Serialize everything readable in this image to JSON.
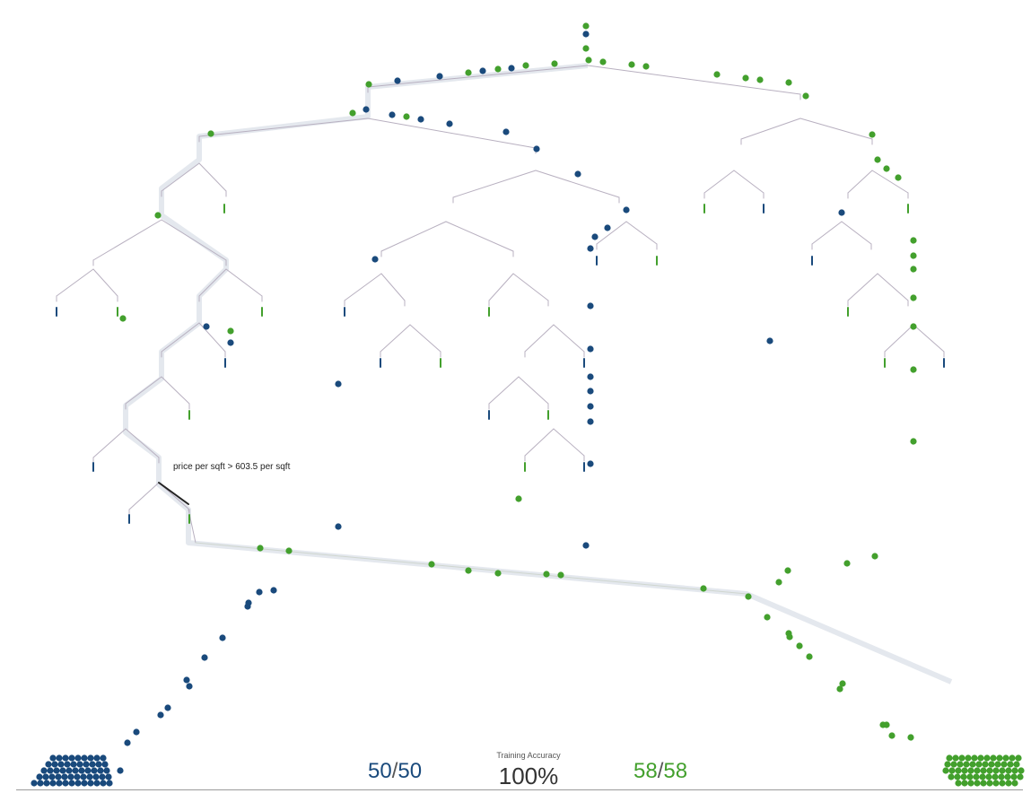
{
  "tooltip": {
    "split_label": "price per sqft > 603.5 per sqft"
  },
  "accuracy": {
    "label": "Training Accuracy",
    "value": "100%"
  },
  "class_a": {
    "correct": "50",
    "total": "50",
    "color": "#1a4a7c"
  },
  "class_b": {
    "correct": "58",
    "total": "58",
    "color": "#43a02d"
  },
  "colors": {
    "branch": "#b8b0c0",
    "highlight": "#e4e8ee",
    "active": "#222222",
    "axis": "#9a9a9a"
  }
}
